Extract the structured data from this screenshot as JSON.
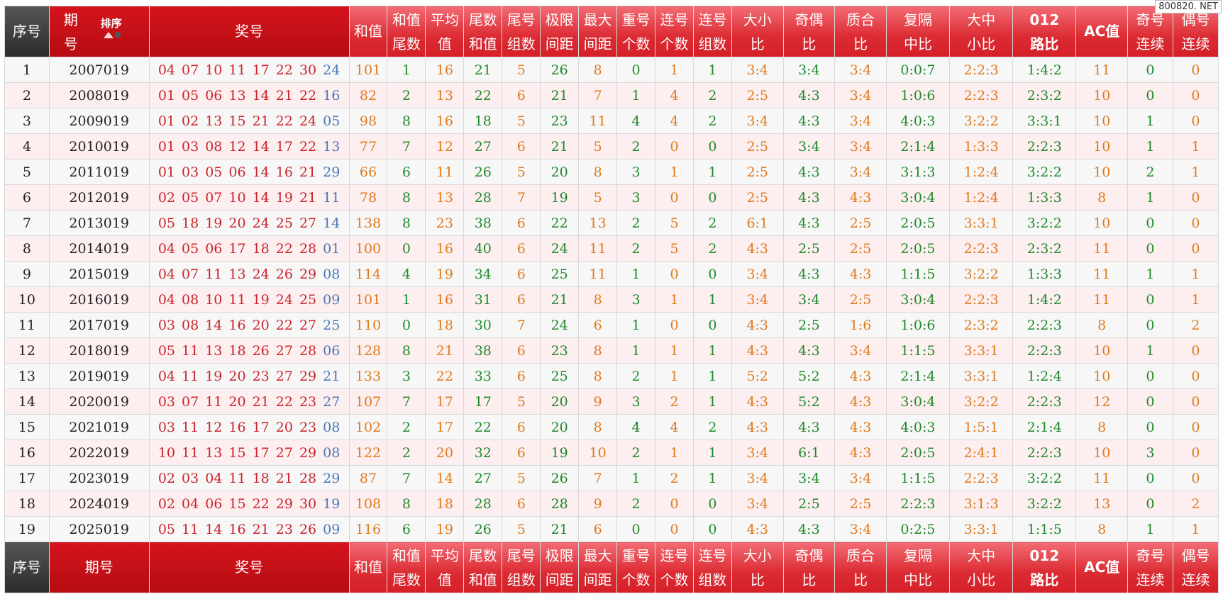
{
  "watermark": "800820. NET",
  "header": {
    "seq": "序号",
    "issue_l1": "期",
    "issue_l2": "号",
    "sort": "排序",
    "numbers": "奖号",
    "sum": "和值",
    "cols": [
      [
        "和值",
        "尾数"
      ],
      [
        "平均",
        "值"
      ],
      [
        "尾数",
        "和值"
      ],
      [
        "尾号",
        "组数"
      ],
      [
        "极限",
        "间距"
      ],
      [
        "最大",
        "间距"
      ],
      [
        "重号",
        "个数"
      ],
      [
        "连号",
        "个数"
      ],
      [
        "连号",
        "组数"
      ],
      [
        "大小",
        "比"
      ],
      [
        "奇偶",
        "比"
      ],
      [
        "质合",
        "比"
      ],
      [
        "复隔",
        "中比"
      ],
      [
        "大中",
        "小比"
      ],
      [
        "012",
        "路比"
      ]
    ],
    "ac": "AC值",
    "odd_cont": [
      "奇号",
      "连续"
    ],
    "even_cont": [
      "偶号",
      "连续"
    ]
  },
  "footer": {
    "seq": "序号",
    "issue": "期号",
    "numbers": "奖号",
    "sum": "和值"
  },
  "rows": [
    {
      "seq": "1",
      "issue": "2007019",
      "red": [
        "04",
        "07",
        "10",
        "11",
        "17",
        "22",
        "30"
      ],
      "blue": "24",
      "sum": "101",
      "tail": "1",
      "avg": "16",
      "tsum": "21",
      "tgrp": "5",
      "lim": "26",
      "maxgap": "8",
      "rep": "0",
      "consec": "1",
      "cgrp": "1",
      "bs": "3:4",
      "oe": "3:4",
      "pc": "3:4",
      "fg": "0:0:7",
      "dzx": "2:2:3",
      "r012": "1:4:2",
      "ac": "11",
      "oc": "0",
      "ec": "0"
    },
    {
      "seq": "2",
      "issue": "2008019",
      "red": [
        "01",
        "05",
        "06",
        "13",
        "14",
        "21",
        "22"
      ],
      "blue": "16",
      "sum": "82",
      "tail": "2",
      "avg": "13",
      "tsum": "22",
      "tgrp": "6",
      "lim": "21",
      "maxgap": "7",
      "rep": "1",
      "consec": "4",
      "cgrp": "2",
      "bs": "2:5",
      "oe": "4:3",
      "pc": "3:4",
      "fg": "1:0:6",
      "dzx": "2:2:3",
      "r012": "2:3:2",
      "ac": "10",
      "oc": "0",
      "ec": "0"
    },
    {
      "seq": "3",
      "issue": "2009019",
      "red": [
        "01",
        "02",
        "13",
        "15",
        "21",
        "22",
        "24"
      ],
      "blue": "05",
      "sum": "98",
      "tail": "8",
      "avg": "16",
      "tsum": "18",
      "tgrp": "5",
      "lim": "23",
      "maxgap": "11",
      "rep": "4",
      "consec": "4",
      "cgrp": "2",
      "bs": "3:4",
      "oe": "4:3",
      "pc": "3:4",
      "fg": "4:0:3",
      "dzx": "3:2:2",
      "r012": "3:3:1",
      "ac": "10",
      "oc": "1",
      "ec": "0"
    },
    {
      "seq": "4",
      "issue": "2010019",
      "red": [
        "01",
        "03",
        "08",
        "12",
        "14",
        "17",
        "22"
      ],
      "blue": "13",
      "sum": "77",
      "tail": "7",
      "avg": "12",
      "tsum": "27",
      "tgrp": "6",
      "lim": "21",
      "maxgap": "5",
      "rep": "2",
      "consec": "0",
      "cgrp": "0",
      "bs": "2:5",
      "oe": "3:4",
      "pc": "3:4",
      "fg": "2:1:4",
      "dzx": "1:3:3",
      "r012": "2:2:3",
      "ac": "10",
      "oc": "1",
      "ec": "1"
    },
    {
      "seq": "5",
      "issue": "2011019",
      "red": [
        "01",
        "03",
        "05",
        "06",
        "14",
        "16",
        "21"
      ],
      "blue": "29",
      "sum": "66",
      "tail": "6",
      "avg": "11",
      "tsum": "26",
      "tgrp": "5",
      "lim": "20",
      "maxgap": "8",
      "rep": "3",
      "consec": "1",
      "cgrp": "1",
      "bs": "2:5",
      "oe": "4:3",
      "pc": "3:4",
      "fg": "3:1:3",
      "dzx": "1:2:4",
      "r012": "3:2:2",
      "ac": "10",
      "oc": "2",
      "ec": "1"
    },
    {
      "seq": "6",
      "issue": "2012019",
      "red": [
        "02",
        "05",
        "07",
        "10",
        "14",
        "19",
        "21"
      ],
      "blue": "11",
      "sum": "78",
      "tail": "8",
      "avg": "13",
      "tsum": "28",
      "tgrp": "7",
      "lim": "19",
      "maxgap": "5",
      "rep": "3",
      "consec": "0",
      "cgrp": "0",
      "bs": "2:5",
      "oe": "4:3",
      "pc": "4:3",
      "fg": "3:0:4",
      "dzx": "1:2:4",
      "r012": "1:3:3",
      "ac": "8",
      "oc": "1",
      "ec": "0"
    },
    {
      "seq": "7",
      "issue": "2013019",
      "red": [
        "05",
        "18",
        "19",
        "20",
        "24",
        "25",
        "27"
      ],
      "blue": "14",
      "sum": "138",
      "tail": "8",
      "avg": "23",
      "tsum": "38",
      "tgrp": "6",
      "lim": "22",
      "maxgap": "13",
      "rep": "2",
      "consec": "5",
      "cgrp": "2",
      "bs": "6:1",
      "oe": "4:3",
      "pc": "2:5",
      "fg": "2:0:5",
      "dzx": "3:3:1",
      "r012": "3:2:2",
      "ac": "10",
      "oc": "0",
      "ec": "0"
    },
    {
      "seq": "8",
      "issue": "2014019",
      "red": [
        "04",
        "05",
        "06",
        "17",
        "18",
        "22",
        "28"
      ],
      "blue": "01",
      "sum": "100",
      "tail": "0",
      "avg": "16",
      "tsum": "40",
      "tgrp": "6",
      "lim": "24",
      "maxgap": "11",
      "rep": "2",
      "consec": "5",
      "cgrp": "2",
      "bs": "4:3",
      "oe": "2:5",
      "pc": "2:5",
      "fg": "2:0:5",
      "dzx": "2:2:3",
      "r012": "2:3:2",
      "ac": "11",
      "oc": "0",
      "ec": "0"
    },
    {
      "seq": "9",
      "issue": "2015019",
      "red": [
        "04",
        "07",
        "11",
        "13",
        "24",
        "26",
        "29"
      ],
      "blue": "08",
      "sum": "114",
      "tail": "4",
      "avg": "19",
      "tsum": "34",
      "tgrp": "6",
      "lim": "25",
      "maxgap": "11",
      "rep": "1",
      "consec": "0",
      "cgrp": "0",
      "bs": "3:4",
      "oe": "4:3",
      "pc": "4:3",
      "fg": "1:1:5",
      "dzx": "3:2:2",
      "r012": "1:3:3",
      "ac": "11",
      "oc": "1",
      "ec": "1"
    },
    {
      "seq": "10",
      "issue": "2016019",
      "red": [
        "04",
        "08",
        "10",
        "11",
        "19",
        "24",
        "25"
      ],
      "blue": "09",
      "sum": "101",
      "tail": "1",
      "avg": "16",
      "tsum": "31",
      "tgrp": "6",
      "lim": "21",
      "maxgap": "8",
      "rep": "3",
      "consec": "1",
      "cgrp": "1",
      "bs": "3:4",
      "oe": "3:4",
      "pc": "2:5",
      "fg": "3:0:4",
      "dzx": "2:2:3",
      "r012": "1:4:2",
      "ac": "11",
      "oc": "0",
      "ec": "1"
    },
    {
      "seq": "11",
      "issue": "2017019",
      "red": [
        "03",
        "08",
        "14",
        "16",
        "20",
        "22",
        "27"
      ],
      "blue": "25",
      "sum": "110",
      "tail": "0",
      "avg": "18",
      "tsum": "30",
      "tgrp": "7",
      "lim": "24",
      "maxgap": "6",
      "rep": "1",
      "consec": "0",
      "cgrp": "0",
      "bs": "4:3",
      "oe": "2:5",
      "pc": "1:6",
      "fg": "1:0:6",
      "dzx": "2:3:2",
      "r012": "2:2:3",
      "ac": "8",
      "oc": "0",
      "ec": "2"
    },
    {
      "seq": "12",
      "issue": "2018019",
      "red": [
        "05",
        "11",
        "13",
        "18",
        "26",
        "27",
        "28"
      ],
      "blue": "06",
      "sum": "128",
      "tail": "8",
      "avg": "21",
      "tsum": "38",
      "tgrp": "6",
      "lim": "23",
      "maxgap": "8",
      "rep": "1",
      "consec": "1",
      "cgrp": "1",
      "bs": "4:3",
      "oe": "4:3",
      "pc": "3:4",
      "fg": "1:1:5",
      "dzx": "3:3:1",
      "r012": "2:2:3",
      "ac": "10",
      "oc": "1",
      "ec": "0"
    },
    {
      "seq": "13",
      "issue": "2019019",
      "red": [
        "04",
        "11",
        "19",
        "20",
        "23",
        "27",
        "29"
      ],
      "blue": "21",
      "sum": "133",
      "tail": "3",
      "avg": "22",
      "tsum": "33",
      "tgrp": "6",
      "lim": "25",
      "maxgap": "8",
      "rep": "2",
      "consec": "1",
      "cgrp": "1",
      "bs": "5:2",
      "oe": "5:2",
      "pc": "4:3",
      "fg": "2:1:4",
      "dzx": "3:3:1",
      "r012": "1:2:4",
      "ac": "10",
      "oc": "0",
      "ec": "0"
    },
    {
      "seq": "14",
      "issue": "2020019",
      "red": [
        "03",
        "07",
        "11",
        "20",
        "21",
        "22",
        "23"
      ],
      "blue": "27",
      "sum": "107",
      "tail": "7",
      "avg": "17",
      "tsum": "17",
      "tgrp": "5",
      "lim": "20",
      "maxgap": "9",
      "rep": "3",
      "consec": "2",
      "cgrp": "1",
      "bs": "4:3",
      "oe": "5:2",
      "pc": "4:3",
      "fg": "3:0:4",
      "dzx": "3:2:2",
      "r012": "2:2:3",
      "ac": "12",
      "oc": "0",
      "ec": "0"
    },
    {
      "seq": "15",
      "issue": "2021019",
      "red": [
        "03",
        "11",
        "12",
        "16",
        "17",
        "20",
        "23"
      ],
      "blue": "08",
      "sum": "102",
      "tail": "2",
      "avg": "17",
      "tsum": "22",
      "tgrp": "6",
      "lim": "20",
      "maxgap": "8",
      "rep": "4",
      "consec": "4",
      "cgrp": "2",
      "bs": "4:3",
      "oe": "4:3",
      "pc": "4:3",
      "fg": "4:0:3",
      "dzx": "1:5:1",
      "r012": "2:1:4",
      "ac": "8",
      "oc": "0",
      "ec": "0"
    },
    {
      "seq": "16",
      "issue": "2022019",
      "red": [
        "10",
        "11",
        "13",
        "15",
        "17",
        "27",
        "29"
      ],
      "blue": "08",
      "sum": "122",
      "tail": "2",
      "avg": "20",
      "tsum": "32",
      "tgrp": "6",
      "lim": "19",
      "maxgap": "10",
      "rep": "2",
      "consec": "1",
      "cgrp": "1",
      "bs": "3:4",
      "oe": "6:1",
      "pc": "4:3",
      "fg": "2:0:5",
      "dzx": "2:4:1",
      "r012": "2:2:3",
      "ac": "10",
      "oc": "3",
      "ec": "0"
    },
    {
      "seq": "17",
      "issue": "2023019",
      "red": [
        "02",
        "03",
        "04",
        "11",
        "18",
        "21",
        "28"
      ],
      "blue": "29",
      "sum": "87",
      "tail": "7",
      "avg": "14",
      "tsum": "27",
      "tgrp": "5",
      "lim": "26",
      "maxgap": "7",
      "rep": "1",
      "consec": "2",
      "cgrp": "1",
      "bs": "3:4",
      "oe": "3:4",
      "pc": "3:4",
      "fg": "1:1:5",
      "dzx": "2:2:3",
      "r012": "3:2:2",
      "ac": "11",
      "oc": "0",
      "ec": "0"
    },
    {
      "seq": "18",
      "issue": "2024019",
      "red": [
        "02",
        "04",
        "06",
        "15",
        "22",
        "29",
        "30"
      ],
      "blue": "19",
      "sum": "108",
      "tail": "8",
      "avg": "18",
      "tsum": "28",
      "tgrp": "6",
      "lim": "28",
      "maxgap": "9",
      "rep": "2",
      "consec": "0",
      "cgrp": "0",
      "bs": "3:4",
      "oe": "2:5",
      "pc": "2:5",
      "fg": "2:2:3",
      "dzx": "3:1:3",
      "r012": "3:2:2",
      "ac": "13",
      "oc": "0",
      "ec": "2"
    },
    {
      "seq": "19",
      "issue": "2025019",
      "red": [
        "05",
        "11",
        "14",
        "16",
        "21",
        "23",
        "26"
      ],
      "blue": "09",
      "sum": "116",
      "tail": "6",
      "avg": "19",
      "tsum": "26",
      "tgrp": "5",
      "lim": "21",
      "maxgap": "6",
      "rep": "0",
      "consec": "0",
      "cgrp": "0",
      "bs": "4:3",
      "oe": "4:3",
      "pc": "3:4",
      "fg": "0:2:5",
      "dzx": "3:3:1",
      "r012": "1:1:5",
      "ac": "8",
      "oc": "1",
      "ec": "1"
    }
  ],
  "gap_after": [
    6,
    12,
    18
  ]
}
